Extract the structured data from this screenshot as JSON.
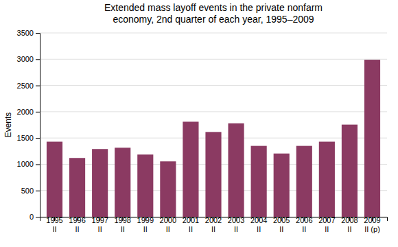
{
  "chart_data": {
    "type": "bar",
    "title": "Extended mass layoff events in the private nonfarm\neconomy, 2nd quarter of each year, 1995–2009",
    "y_label": "Events",
    "categories": [
      "1995\nII",
      "1996\nII",
      "1997\nII",
      "1998\nII",
      "1999\nII",
      "2000\nII",
      "2001\nII",
      "2002\nII",
      "2003\nII",
      "2004\nII",
      "2005\nII",
      "2006\nII",
      "2007\nII",
      "2008\nII",
      "2009\nII (p)"
    ],
    "values": [
      1430,
      1120,
      1290,
      1315,
      1185,
      1055,
      1810,
      1615,
      1780,
      1350,
      1205,
      1350,
      1430,
      1755,
      2990
    ],
    "color": "#8b3a62",
    "ylim": [
      0,
      3500
    ],
    "yticks": [
      0,
      500,
      1000,
      1500,
      2000,
      2500,
      3000,
      3500
    ],
    "grid": true
  }
}
